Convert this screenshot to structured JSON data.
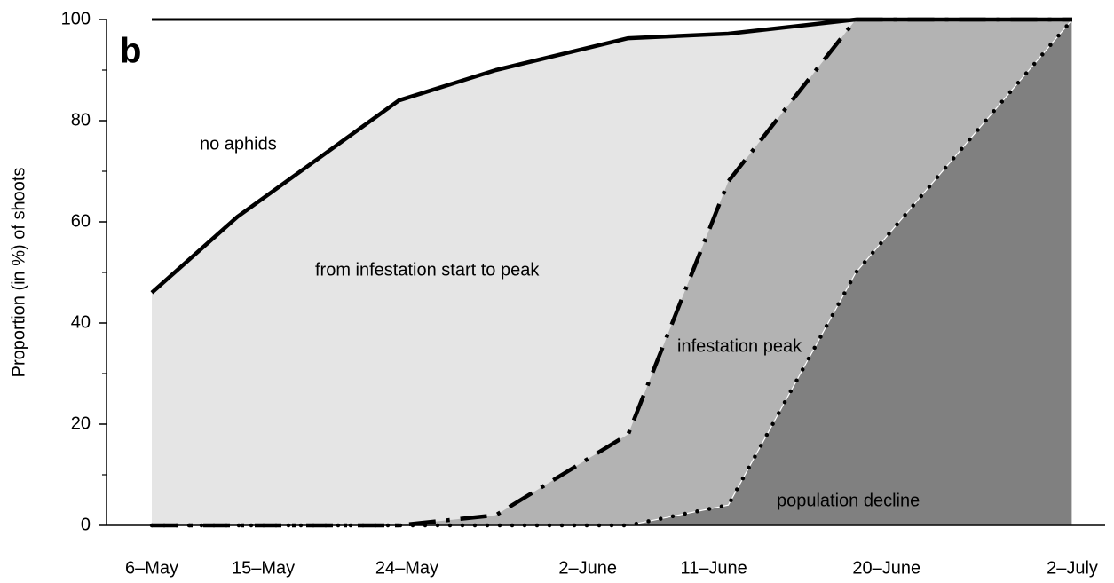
{
  "chart_data": {
    "type": "area",
    "panel_label": "b",
    "ylabel": "Proportion (in %) of shoots",
    "x": [
      0,
      5.3,
      15.3,
      21.3,
      29.5,
      35.7,
      43.6,
      57
    ],
    "xlim": [
      0,
      57
    ],
    "xticks": [
      {
        "value": 0,
        "label": "6–May"
      },
      {
        "value": 6.9,
        "label": "15–May"
      },
      {
        "value": 15.8,
        "label": "24–May"
      },
      {
        "value": 27,
        "label": "2–June"
      },
      {
        "value": 34.8,
        "label": "11–June"
      },
      {
        "value": 45.5,
        "label": "20–June"
      },
      {
        "value": 57,
        "label": "2–July"
      }
    ],
    "ylim": [
      0,
      100
    ],
    "yticks": [
      0,
      20,
      40,
      60,
      80,
      100
    ],
    "yminor_ticks": [
      10,
      30,
      50,
      70,
      90
    ],
    "series": [
      {
        "color": "#e5e5e5",
        "line": "solid",
        "values": [
          46,
          61,
          84,
          90,
          96.3,
          97.2,
          100,
          100
        ]
      },
      {
        "color": "#b3b3b3",
        "line": "dashdot",
        "values": [
          0,
          0,
          0,
          2,
          18,
          68,
          100,
          100
        ]
      },
      {
        "color": "#808080",
        "line": "dotted",
        "values": [
          0,
          0,
          0,
          0,
          0,
          4,
          50,
          100
        ]
      }
    ],
    "annotations": [
      "no aphids",
      "from infestation start to peak",
      "infestation peak",
      "population decline"
    ]
  }
}
